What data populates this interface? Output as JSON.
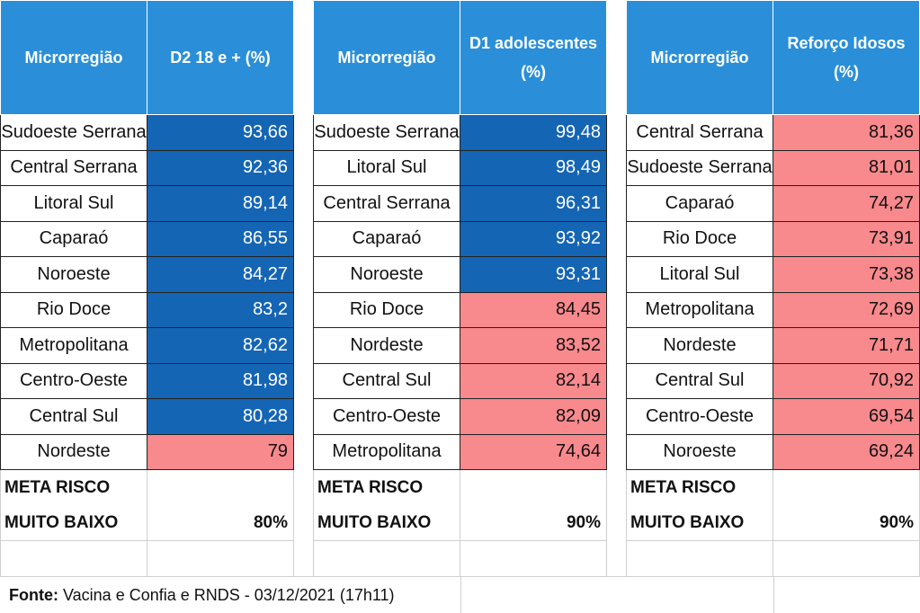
{
  "tables": [
    {
      "region_header": "Microrregião",
      "value_header": "D2 18 e + (%)",
      "rows": [
        {
          "name": "Sudoeste Serrana",
          "value": "93,66",
          "status": "blue"
        },
        {
          "name": "Central Serrana",
          "value": "92,36",
          "status": "blue"
        },
        {
          "name": "Litoral Sul",
          "value": "89,14",
          "status": "blue"
        },
        {
          "name": "Caparaó",
          "value": "86,55",
          "status": "blue"
        },
        {
          "name": "Noroeste",
          "value": "84,27",
          "status": "blue"
        },
        {
          "name": "Rio Doce",
          "value": "83,2",
          "status": "blue"
        },
        {
          "name": "Metropolitana",
          "value": "82,62",
          "status": "blue"
        },
        {
          "name": "Centro-Oeste",
          "value": "81,98",
          "status": "blue"
        },
        {
          "name": "Central Sul",
          "value": "80,28",
          "status": "blue"
        },
        {
          "name": "Nordeste",
          "value": "79",
          "status": "red"
        }
      ],
      "meta_line1": "META RISCO",
      "meta_line2": "MUITO BAIXO",
      "meta_value": "80%"
    },
    {
      "region_header": "Microrregião",
      "value_header": "D1 adolescentes (%)",
      "rows": [
        {
          "name": "Sudoeste Serrana",
          "value": "99,48",
          "status": "blue"
        },
        {
          "name": "Litoral Sul",
          "value": "98,49",
          "status": "blue"
        },
        {
          "name": "Central Serrana",
          "value": "96,31",
          "status": "blue"
        },
        {
          "name": "Caparaó",
          "value": "93,92",
          "status": "blue"
        },
        {
          "name": "Noroeste",
          "value": "93,31",
          "status": "blue"
        },
        {
          "name": "Rio Doce",
          "value": "84,45",
          "status": "red"
        },
        {
          "name": "Nordeste",
          "value": "83,52",
          "status": "red"
        },
        {
          "name": "Central Sul",
          "value": "82,14",
          "status": "red"
        },
        {
          "name": "Centro-Oeste",
          "value": "82,09",
          "status": "red"
        },
        {
          "name": "Metropolitana",
          "value": "74,64",
          "status": "red"
        }
      ],
      "meta_line1": "META RISCO",
      "meta_line2": "MUITO BAIXO",
      "meta_value": "90%"
    },
    {
      "region_header": "Microrregião",
      "value_header": "Reforço Idosos (%)",
      "rows": [
        {
          "name": "Central Serrana",
          "value": "81,36",
          "status": "red"
        },
        {
          "name": "Sudoeste Serrana",
          "value": "81,01",
          "status": "red"
        },
        {
          "name": "Caparaó",
          "value": "74,27",
          "status": "red"
        },
        {
          "name": "Rio Doce",
          "value": "73,91",
          "status": "red"
        },
        {
          "name": "Litoral Sul",
          "value": "73,38",
          "status": "red"
        },
        {
          "name": "Metropolitana",
          "value": "72,69",
          "status": "red"
        },
        {
          "name": "Nordeste",
          "value": "71,71",
          "status": "red"
        },
        {
          "name": "Central Sul",
          "value": "70,92",
          "status": "red"
        },
        {
          "name": "Centro-Oeste",
          "value": "69,54",
          "status": "red"
        },
        {
          "name": "Noroeste",
          "value": "69,24",
          "status": "red"
        }
      ],
      "meta_line1": "META RISCO",
      "meta_line2": "MUITO BAIXO",
      "meta_value": "90%"
    }
  ],
  "footer": {
    "label": "Fonte:",
    "text": " Vacina e Confia e RNDS - 03/12/2021 (17h11)"
  },
  "colors": {
    "header_blue": "#2a8fd8",
    "above_goal_blue": "#1565b5",
    "below_goal_red": "#f8898d"
  }
}
